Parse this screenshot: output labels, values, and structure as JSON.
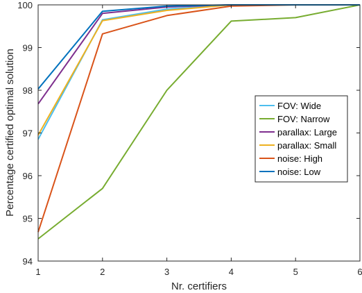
{
  "chart_data": {
    "type": "line",
    "title": "",
    "xlabel": "Nr. certifiers",
    "ylabel": "Percentage certified optimal solution",
    "xlim": [
      1,
      6
    ],
    "ylim": [
      94,
      100
    ],
    "xticks": [
      "1",
      "2",
      "3",
      "4",
      "5",
      "6"
    ],
    "yticks": [
      "94",
      "95",
      "96",
      "97",
      "98",
      "99",
      "100"
    ],
    "legend_position": "right",
    "grid": false,
    "x": [
      1,
      2,
      3,
      4,
      5,
      6
    ],
    "series": [
      {
        "name": "FOV: Wide",
        "color": "#4DBEEE",
        "values": [
          96.85,
          99.65,
          99.9,
          100,
          100,
          100
        ]
      },
      {
        "name": "FOV: Narrow",
        "color": "#77AC30",
        "values": [
          94.52,
          95.7,
          98.0,
          99.62,
          99.7,
          100
        ]
      },
      {
        "name": "parallax: Large",
        "color": "#7E2F8E",
        "values": [
          97.68,
          99.8,
          99.95,
          100,
          100,
          100
        ]
      },
      {
        "name": "parallax: Small",
        "color": "#EDB120",
        "values": [
          96.95,
          99.63,
          99.87,
          100,
          100,
          100
        ]
      },
      {
        "name": "noise: High",
        "color": "#D95319",
        "values": [
          94.68,
          99.32,
          99.75,
          99.97,
          100,
          100
        ]
      },
      {
        "name": "noise: Low",
        "color": "#0072BD",
        "values": [
          98.03,
          99.85,
          99.97,
          100,
          100,
          100
        ]
      }
    ]
  }
}
